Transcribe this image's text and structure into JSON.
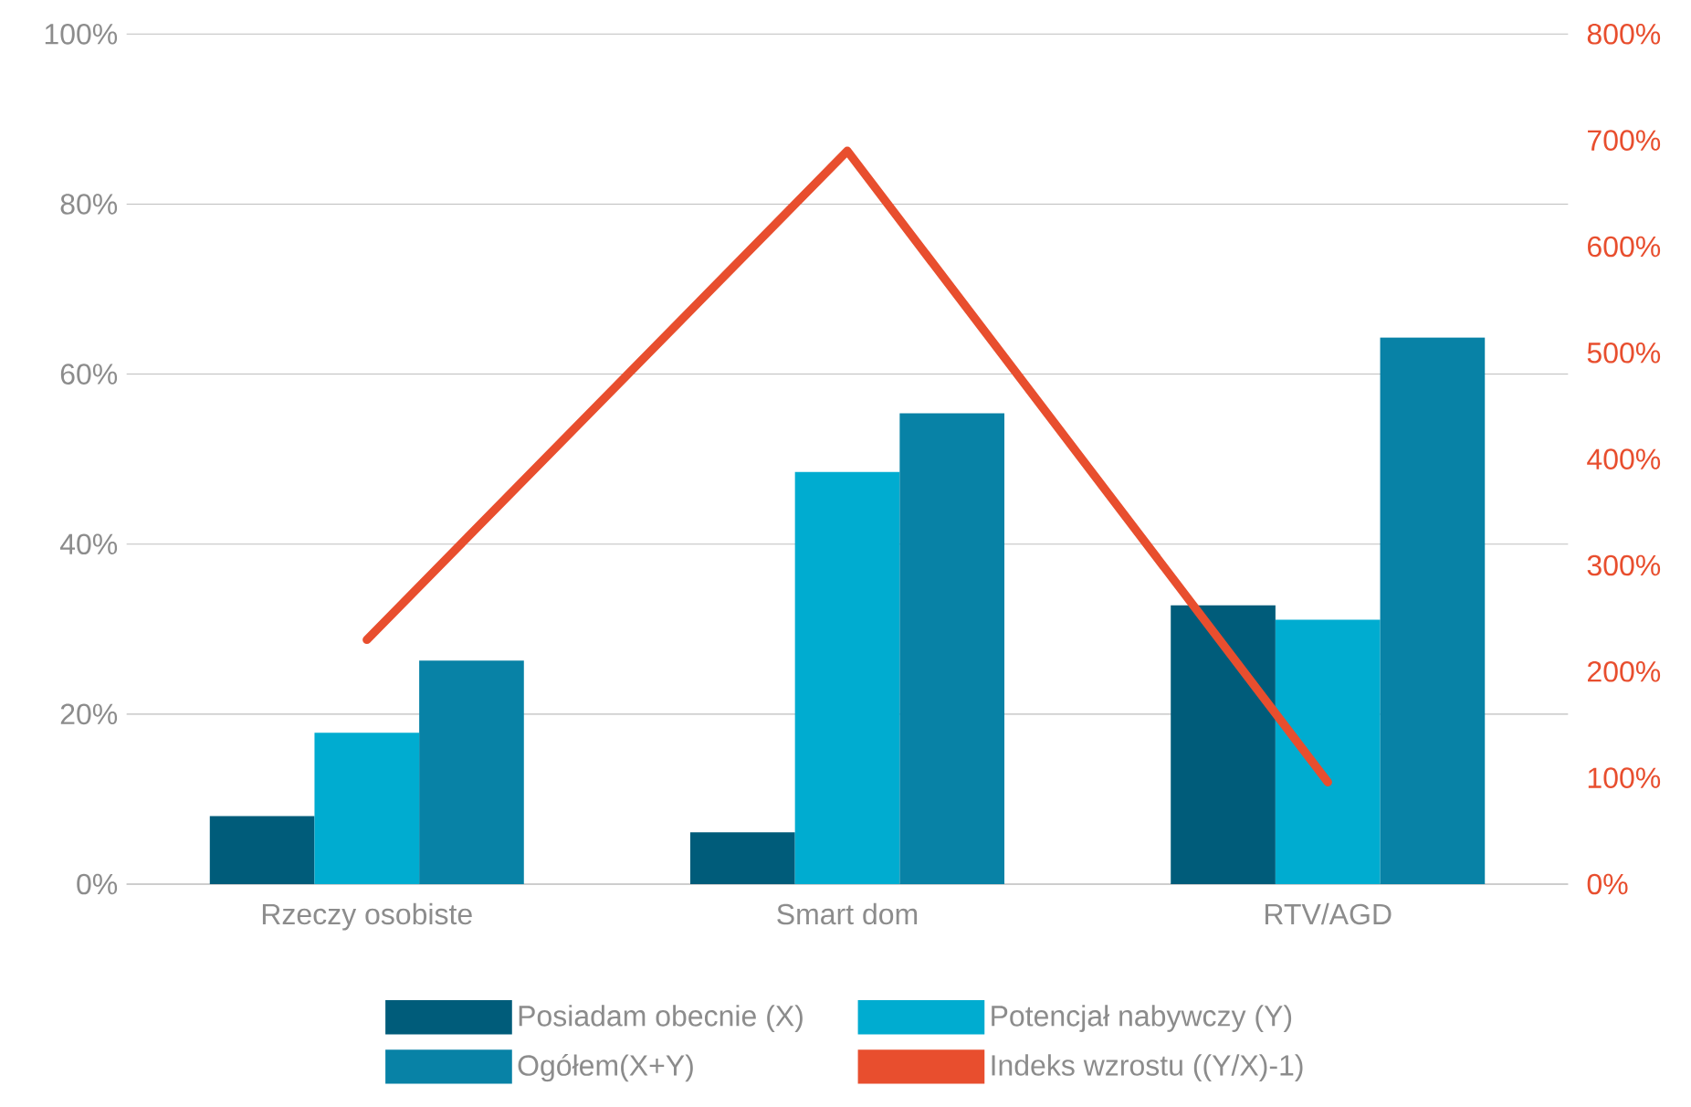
{
  "chart_data": {
    "type": "bar",
    "categories": [
      "Rzeczy osobiste",
      "Smart dom",
      "RTV/AGD"
    ],
    "series": [
      {
        "name": "Posiadam obecnie (X)",
        "color": "#005c7a",
        "values": [
          8.0,
          6.1,
          32.8
        ]
      },
      {
        "name": "Potencjał nabywczy (Y)",
        "color": "#00acd0",
        "values": [
          17.8,
          48.5,
          31.1
        ]
      },
      {
        "name": "Ogółem(X+Y)",
        "color": "#0882a6",
        "values": [
          26.3,
          55.4,
          64.3
        ]
      },
      {
        "name": "Indeks wzrostu ((Y/X)-1)",
        "color": "#e84e2e",
        "type": "line",
        "axis": "y2",
        "values": [
          230,
          690,
          96
        ]
      }
    ],
    "ylim": [
      0,
      100
    ],
    "yticks": [
      {
        "value": 0,
        "label": "0%"
      },
      {
        "value": 20,
        "label": "20%"
      },
      {
        "value": 40,
        "label": "40%"
      },
      {
        "value": 60,
        "label": "60%"
      },
      {
        "value": 80,
        "label": "80%"
      },
      {
        "value": 100,
        "label": "100%"
      }
    ],
    "y2lim": [
      0,
      800
    ],
    "y2ticks": [
      {
        "value": 0,
        "label": "0%"
      },
      {
        "value": 100,
        "label": "100%"
      },
      {
        "value": 200,
        "label": "200%"
      },
      {
        "value": 300,
        "label": "300%"
      },
      {
        "value": 400,
        "label": "400%"
      },
      {
        "value": 500,
        "label": "500%"
      },
      {
        "value": 600,
        "label": "600%"
      },
      {
        "value": 700,
        "label": "700%"
      },
      {
        "value": 800,
        "label": "800%"
      }
    ],
    "grid": "y",
    "legend": "bottom",
    "marker": "none"
  }
}
